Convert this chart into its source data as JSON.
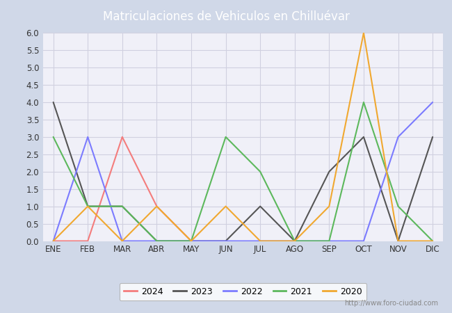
{
  "title": "Matriculaciones de Vehiculos en Chilluévar",
  "title_bg_color": "#5b8dd9",
  "title_text_color": "#ffffff",
  "months": [
    "ENE",
    "FEB",
    "MAR",
    "ABR",
    "MAY",
    "JUN",
    "JUL",
    "AGO",
    "SEP",
    "OCT",
    "NOV",
    "DIC"
  ],
  "series_order": [
    "2024",
    "2023",
    "2022",
    "2021",
    "2020"
  ],
  "series": {
    "2024": {
      "color": "#f47c7c",
      "data": [
        0,
        0,
        3,
        1,
        0,
        null,
        null,
        null,
        null,
        null,
        null,
        null
      ]
    },
    "2023": {
      "color": "#555555",
      "data": [
        4,
        1,
        1,
        0,
        0,
        0,
        1,
        0,
        2,
        3,
        0,
        3
      ]
    },
    "2022": {
      "color": "#7b7bff",
      "data": [
        0,
        3,
        0,
        0,
        0,
        0,
        0,
        0,
        0,
        0,
        3,
        4
      ]
    },
    "2021": {
      "color": "#5cb85c",
      "data": [
        3,
        1,
        1,
        0,
        0,
        3,
        2,
        0,
        0,
        4,
        1,
        0
      ]
    },
    "2020": {
      "color": "#f0a830",
      "data": [
        0,
        1,
        0,
        1,
        0,
        1,
        0,
        0,
        1,
        6,
        0,
        0
      ]
    }
  },
  "ylim": [
    0,
    6.0
  ],
  "yticks": [
    0.0,
    0.5,
    1.0,
    1.5,
    2.0,
    2.5,
    3.0,
    3.5,
    4.0,
    4.5,
    5.0,
    5.5,
    6.0
  ],
  "watermark": "http://www.foro-ciudad.com",
  "outer_bg_color": "#d0d8e8",
  "inner_bg_color": "#eef0f8",
  "plot_bg_color": "#f0f0f8",
  "grid_color": "#d0d0e0",
  "border_color": "#5b8dd9"
}
